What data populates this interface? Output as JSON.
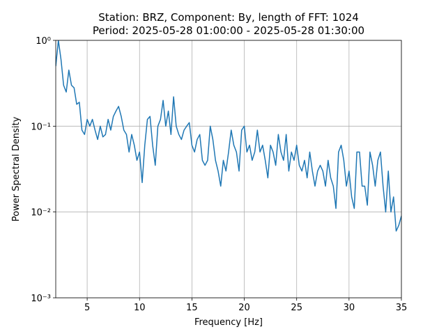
{
  "chart_data": {
    "type": "line",
    "title": "Station: BRZ, Component: By, length of FFT: 1024",
    "subtitle": "Period: 2025-05-28 01:00:00 - 2025-05-28 01:30:00",
    "xlabel": "Frequency [Hz]",
    "ylabel": "Power Spectral Density",
    "color": "#1f77b4",
    "ylog": true,
    "grid": true,
    "xlim": [
      2,
      35
    ],
    "ylim": [
      0.001,
      1
    ],
    "xticks": [
      5,
      10,
      15,
      20,
      25,
      30,
      35
    ],
    "yticks": [
      {
        "value": 0.001,
        "label": "10⁻³"
      },
      {
        "value": 0.01,
        "label": "10⁻²"
      },
      {
        "value": 0.1,
        "label": "10⁻¹"
      },
      {
        "value": 1,
        "label": "10⁰"
      }
    ],
    "x": [
      2,
      2.25,
      2.5,
      2.75,
      3,
      3.25,
      3.5,
      3.75,
      4,
      4.25,
      4.5,
      4.75,
      5,
      5.25,
      5.5,
      5.75,
      6,
      6.25,
      6.5,
      6.75,
      7,
      7.25,
      7.5,
      7.75,
      8,
      8.25,
      8.5,
      8.75,
      9,
      9.25,
      9.5,
      9.75,
      10,
      10.25,
      10.5,
      10.75,
      11,
      11.25,
      11.5,
      11.75,
      12,
      12.25,
      12.5,
      12.75,
      13,
      13.25,
      13.5,
      13.75,
      14,
      14.25,
      14.5,
      14.75,
      15,
      15.25,
      15.5,
      15.75,
      16,
      16.25,
      16.5,
      16.75,
      17,
      17.25,
      17.5,
      17.75,
      18,
      18.25,
      18.5,
      18.75,
      19,
      19.25,
      19.5,
      19.75,
      20,
      20.25,
      20.5,
      20.75,
      21,
      21.25,
      21.5,
      21.75,
      22,
      22.25,
      22.5,
      22.75,
      23,
      23.25,
      23.5,
      23.75,
      24,
      24.25,
      24.5,
      24.75,
      25,
      25.25,
      25.5,
      25.75,
      26,
      26.25,
      26.5,
      26.75,
      27,
      27.25,
      27.5,
      27.75,
      28,
      28.25,
      28.5,
      28.75,
      29,
      29.25,
      29.5,
      29.75,
      30,
      30.25,
      30.5,
      30.75,
      31,
      31.25,
      31.5,
      31.75,
      32,
      32.25,
      32.5,
      32.75,
      33,
      33.25,
      33.5,
      33.75,
      34,
      34.25,
      34.5,
      34.75,
      35
    ],
    "values": [
      0.5,
      1.0,
      0.6,
      0.3,
      0.25,
      0.45,
      0.3,
      0.28,
      0.18,
      0.19,
      0.09,
      0.08,
      0.12,
      0.1,
      0.12,
      0.09,
      0.07,
      0.1,
      0.075,
      0.08,
      0.12,
      0.09,
      0.13,
      0.15,
      0.17,
      0.13,
      0.09,
      0.08,
      0.05,
      0.08,
      0.06,
      0.04,
      0.05,
      0.022,
      0.06,
      0.12,
      0.13,
      0.06,
      0.035,
      0.1,
      0.12,
      0.2,
      0.1,
      0.15,
      0.08,
      0.22,
      0.1,
      0.08,
      0.07,
      0.09,
      0.1,
      0.11,
      0.06,
      0.05,
      0.07,
      0.08,
      0.04,
      0.035,
      0.04,
      0.1,
      0.07,
      0.04,
      0.03,
      0.02,
      0.04,
      0.03,
      0.05,
      0.09,
      0.06,
      0.05,
      0.03,
      0.09,
      0.1,
      0.05,
      0.06,
      0.04,
      0.05,
      0.09,
      0.05,
      0.06,
      0.04,
      0.025,
      0.06,
      0.05,
      0.035,
      0.08,
      0.05,
      0.04,
      0.08,
      0.03,
      0.05,
      0.04,
      0.06,
      0.035,
      0.03,
      0.04,
      0.025,
      0.05,
      0.03,
      0.02,
      0.03,
      0.035,
      0.03,
      0.02,
      0.04,
      0.025,
      0.02,
      0.011,
      0.05,
      0.06,
      0.04,
      0.02,
      0.03,
      0.015,
      0.011,
      0.05,
      0.05,
      0.02,
      0.02,
      0.012,
      0.05,
      0.035,
      0.02,
      0.04,
      0.05,
      0.02,
      0.01,
      0.03,
      0.01,
      0.015,
      0.006,
      0.007,
      0.009
    ]
  }
}
